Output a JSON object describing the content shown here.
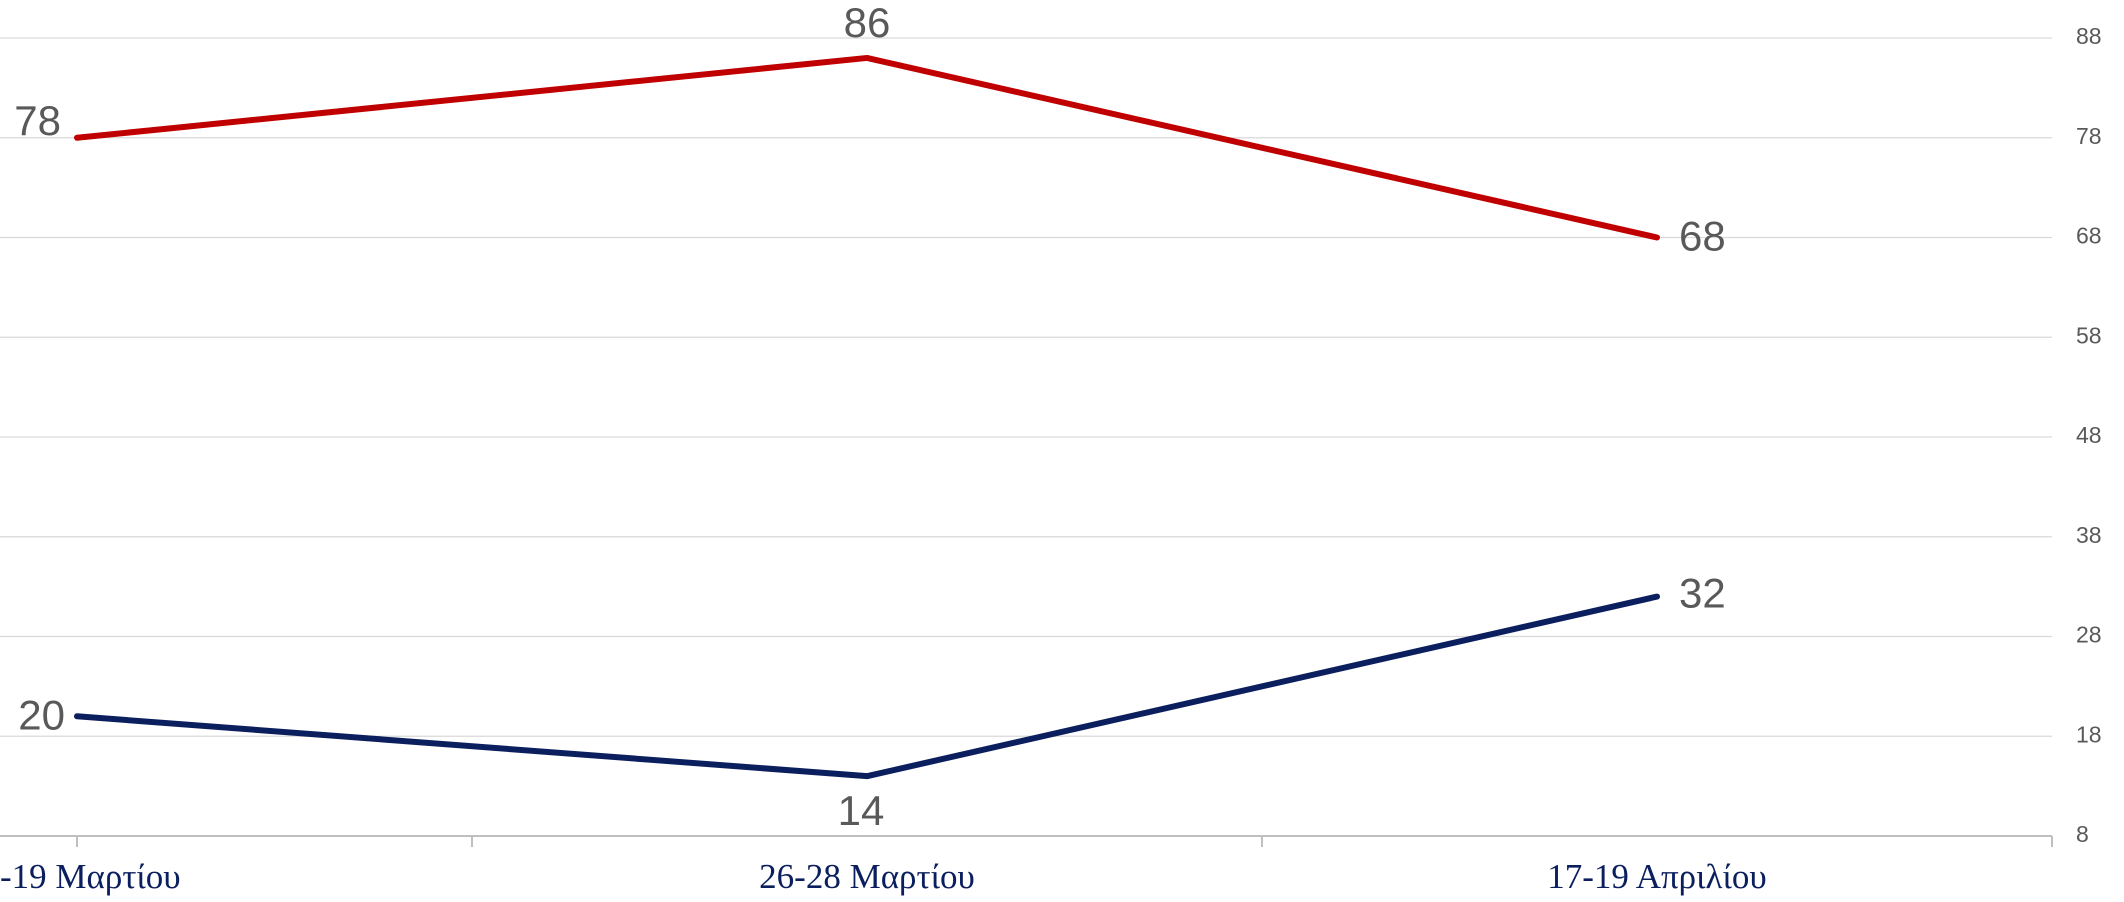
{
  "chart_data": {
    "type": "line",
    "categories": [
      "-19 Μαρτίου",
      "26-28 Μαρτίου",
      "17-19 Απριλίου"
    ],
    "series": [
      {
        "color": "#c00000",
        "values": [
          78,
          86,
          68
        ]
      },
      {
        "color": "#0b1f5e",
        "values": [
          20,
          14,
          32
        ]
      }
    ],
    "ylim": [
      8,
      88
    ],
    "yticks": [
      8,
      18,
      28,
      38,
      48,
      58,
      68,
      78,
      88
    ],
    "grid": true
  }
}
